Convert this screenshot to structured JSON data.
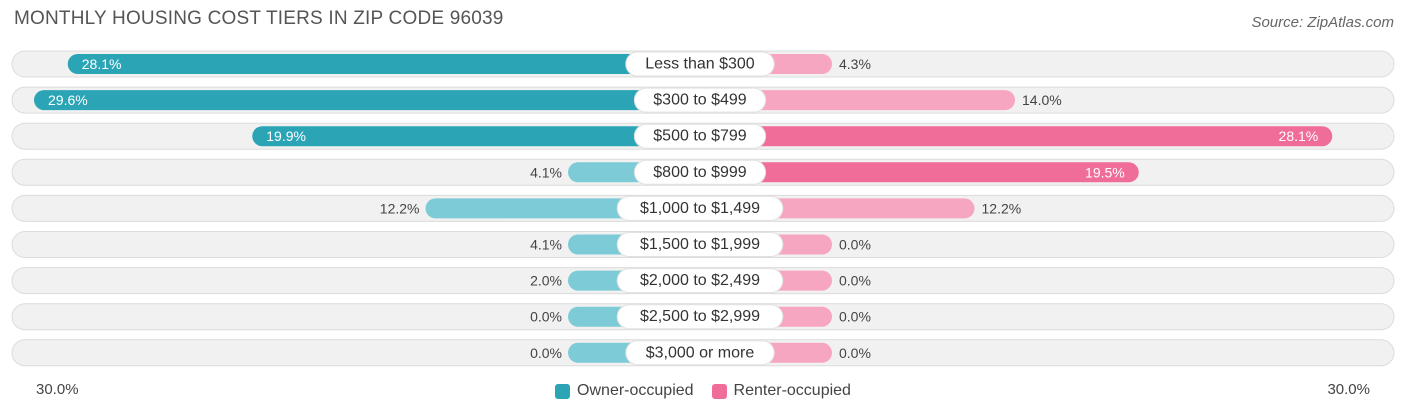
{
  "header": {
    "title": "MONTHLY HOUSING COST TIERS IN ZIP CODE 96039",
    "source": "Source: ZipAtlas.com"
  },
  "axis": {
    "left_label": "30.0%",
    "right_label": "30.0%"
  },
  "legend": [
    {
      "label": "Owner-occupied",
      "color": "#2ba5b6"
    },
    {
      "label": "Renter-occupied",
      "color": "#f06d99"
    }
  ],
  "chart_data": {
    "type": "bar",
    "orientation": "horizontal-diverging",
    "categories": [
      "Less than $300",
      "$300 to $499",
      "$500 to $799",
      "$800 to $999",
      "$1,000 to $1,499",
      "$1,500 to $1,999",
      "$2,000 to $2,499",
      "$2,500 to $2,999",
      "$3,000 or more"
    ],
    "series": [
      {
        "name": "Owner-occupied",
        "values": [
          28.1,
          29.6,
          19.9,
          4.1,
          12.2,
          4.1,
          2.0,
          0.0,
          0.0
        ],
        "labels": [
          "28.1%",
          "29.6%",
          "19.9%",
          "4.1%",
          "12.2%",
          "4.1%",
          "2.0%",
          "0.0%",
          "0.0%"
        ]
      },
      {
        "name": "Renter-occupied",
        "values": [
          4.3,
          14.0,
          28.1,
          19.5,
          12.2,
          0.0,
          0.0,
          0.0,
          0.0
        ],
        "labels": [
          "4.3%",
          "14.0%",
          "28.1%",
          "19.5%",
          "12.2%",
          "0.0%",
          "0.0%",
          "0.0%",
          "0.0%"
        ]
      }
    ],
    "xlim": [
      -30,
      30
    ],
    "colors": {
      "owner_strong": "#2ba5b6",
      "owner_light": "#7ccbd6",
      "renter_strong": "#f06d99",
      "renter_light": "#f7a6c1"
    }
  }
}
